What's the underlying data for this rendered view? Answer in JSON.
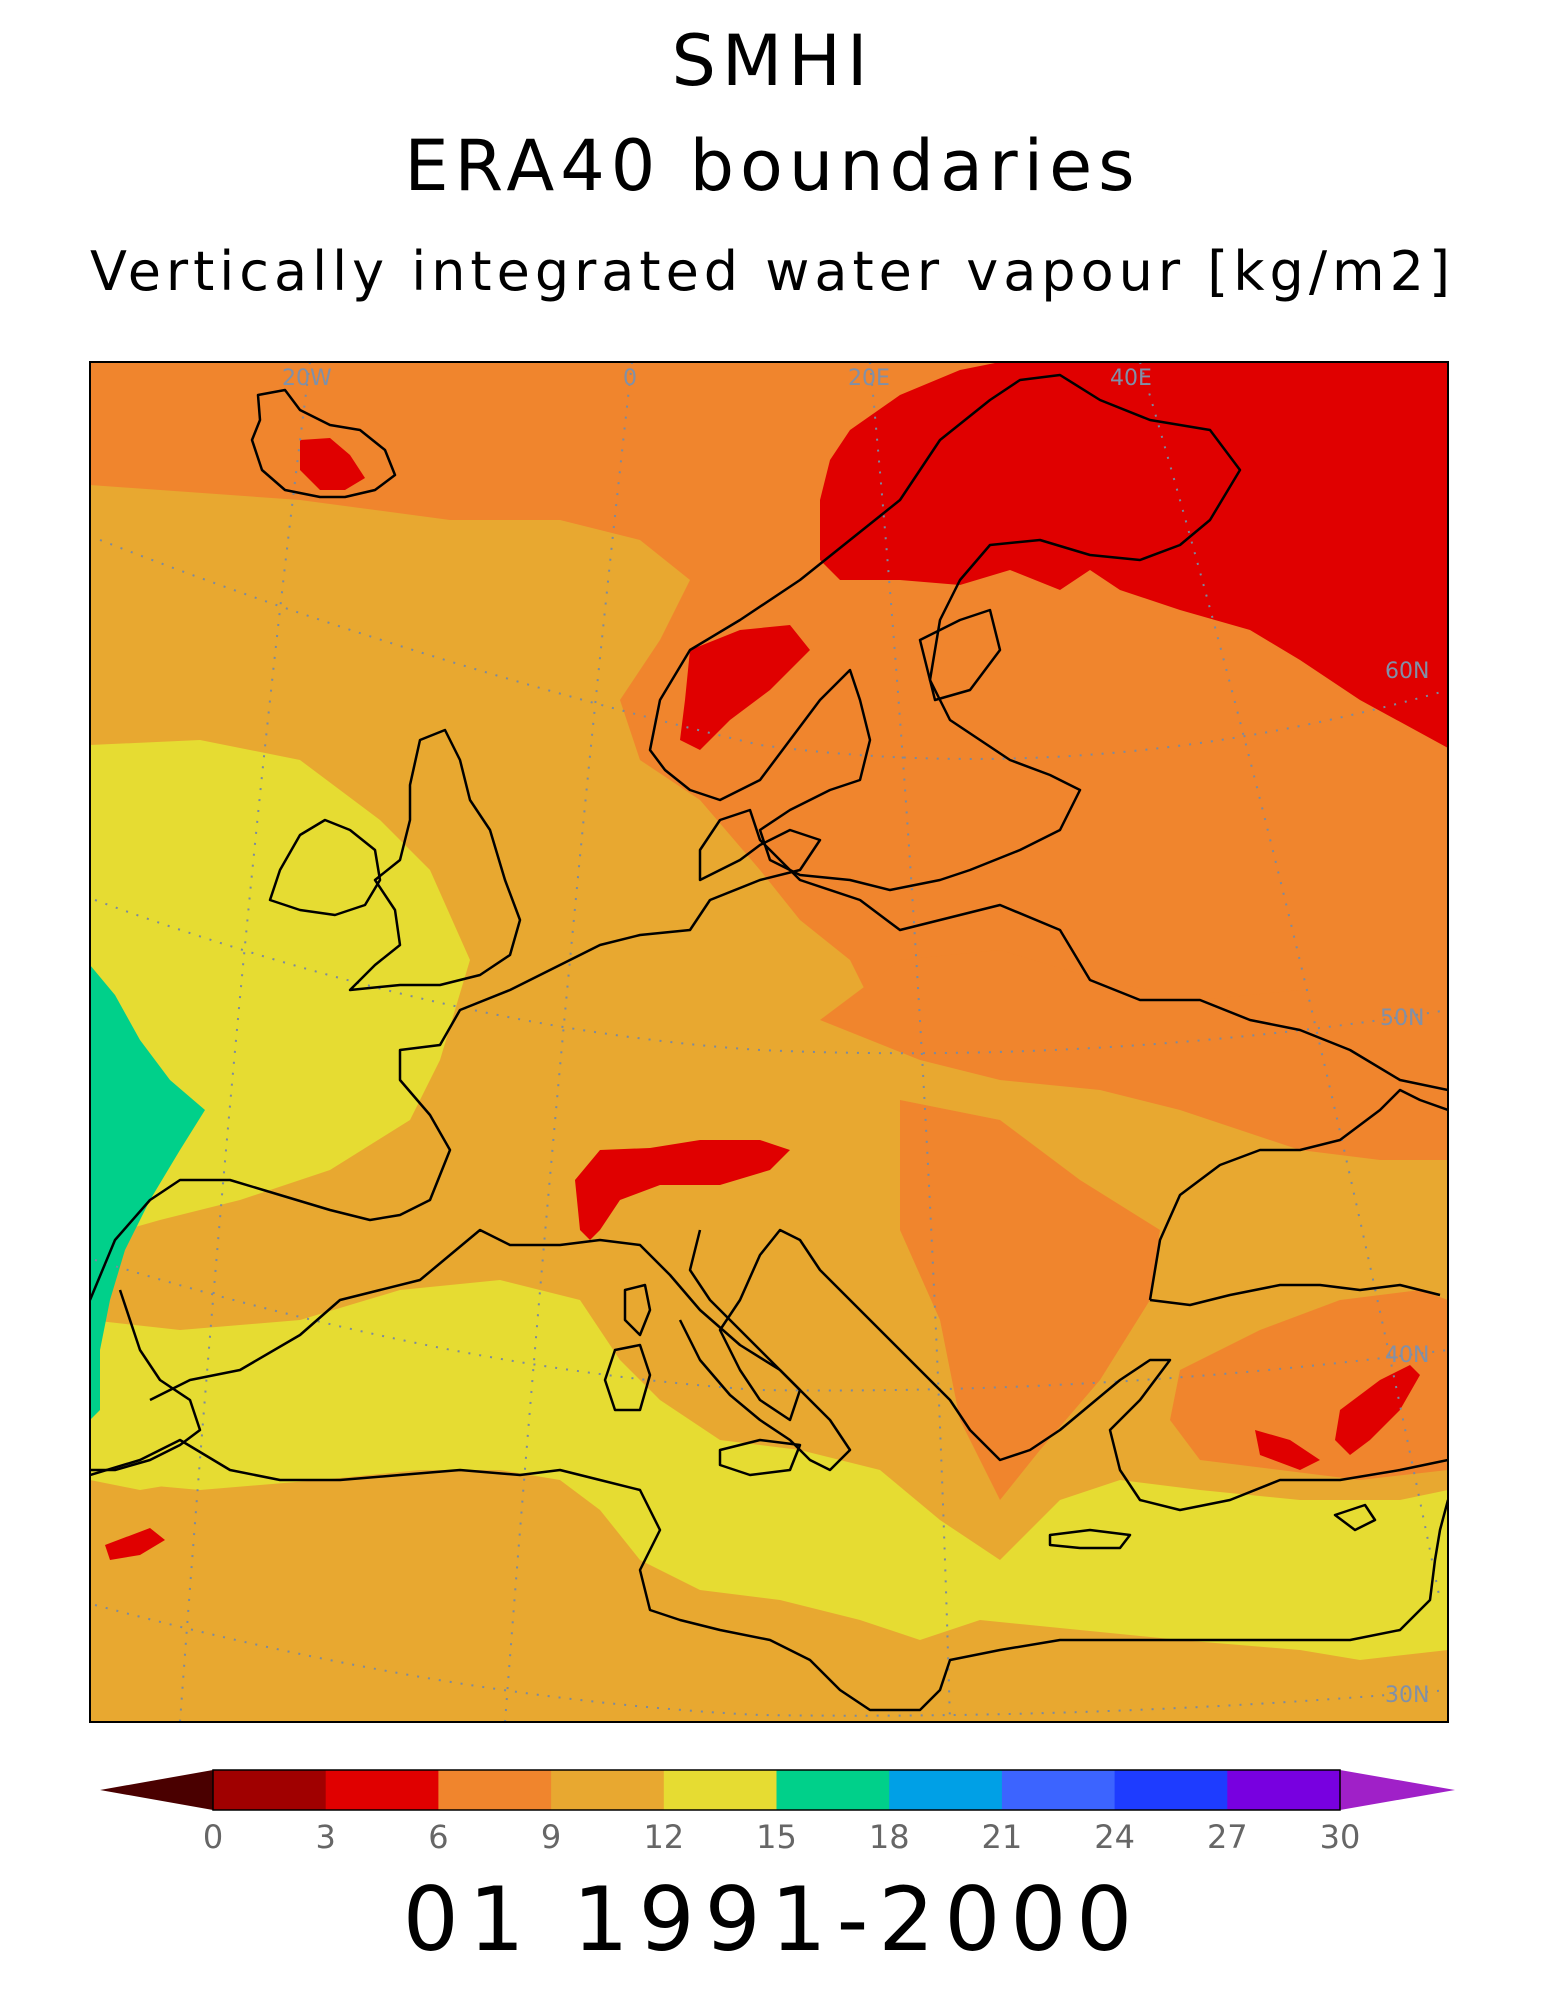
{
  "titles": {
    "line1": "SMHI",
    "line2": "ERA40 boundaries",
    "line3": "Vertically integrated water vapour [kg/m2]"
  },
  "grid_labels": {
    "longitudes": [
      "20W",
      "0",
      "20E",
      "40E"
    ],
    "latitudes": [
      "60N",
      "50N",
      "40N",
      "30N"
    ]
  },
  "colorbar": {
    "ticks": [
      "0",
      "3",
      "6",
      "9",
      "12",
      "15",
      "18",
      "21",
      "24",
      "27",
      "30"
    ],
    "below_color": "#4a0000",
    "above_color": "#a020c8",
    "colors": [
      "#a00000",
      "#e00000",
      "#f0852d",
      "#e8a830",
      "#e6dc32",
      "#00d08a",
      "#00a0e6",
      "#3c64ff",
      "#1e3cff",
      "#7800e0"
    ]
  },
  "field_colors": {
    "red": "#e00000",
    "orange": "#f0852d",
    "amber": "#e8a830",
    "yellow": "#e6dc32",
    "green": "#00d08a"
  },
  "footer": "01 1991-2000"
}
